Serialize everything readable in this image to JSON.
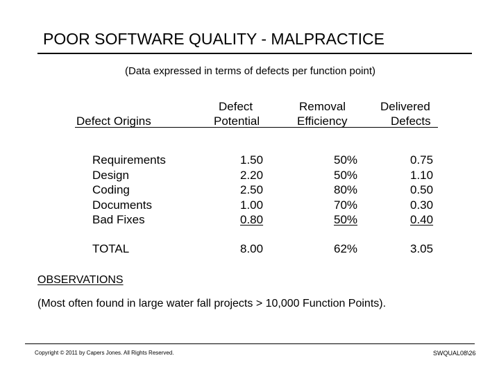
{
  "slide": {
    "title": "POOR SOFTWARE QUALITY - MALPRACTICE",
    "subtitle": "(Data expressed in terms of defects per function point)"
  },
  "table": {
    "headers": {
      "origins": "Defect Origins",
      "potential_line1": "Defect",
      "potential_line2": "Potential",
      "efficiency_line1": "Removal",
      "efficiency_line2": "Efficiency",
      "delivered_line1": "Delivered",
      "delivered_line2": "Defects"
    },
    "rows": [
      {
        "origin": "Requirements",
        "potential": "1.50",
        "efficiency": "50%",
        "delivered": "0.75"
      },
      {
        "origin": "Design",
        "potential": "2.20",
        "efficiency": "50%",
        "delivered": "1.10"
      },
      {
        "origin": "Coding",
        "potential": "2.50",
        "efficiency": "80%",
        "delivered": "0.50"
      },
      {
        "origin": "Documents",
        "potential": "1.00",
        "efficiency": "70%",
        "delivered": "0.30"
      },
      {
        "origin": "Bad Fixes",
        "potential": "0.80",
        "efficiency": "50%",
        "delivered": "0.40"
      }
    ],
    "total": {
      "label": "TOTAL",
      "potential": "8.00",
      "efficiency": "62%",
      "delivered": "3.05"
    }
  },
  "observations": {
    "heading": "OBSERVATIONS",
    "text": "(Most often found in large water fall  projects > 10,000  Function Points)."
  },
  "footer": {
    "copyright": "Copyright © 2011 by Capers Jones.  All Rights Reserved.",
    "slide_id": "SWQUAL08\\26"
  }
}
